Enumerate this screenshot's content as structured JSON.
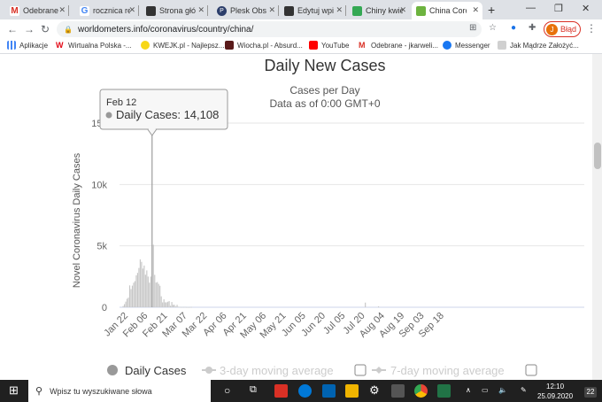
{
  "browser": {
    "tabs": [
      {
        "label": "Odebrane"
      },
      {
        "label": "rocznica re"
      },
      {
        "label": "Strona głó"
      },
      {
        "label": "Plesk Obs"
      },
      {
        "label": "Edytuj wpi"
      },
      {
        "label": "Chiny kwie"
      },
      {
        "label": "China Coro"
      }
    ],
    "new_tab": "+",
    "url": "worldometers.info/coronavirus/country/china/",
    "error_label": "Błąd",
    "avatar_letter": "J",
    "bookmarks": [
      {
        "label": "Aplikacje"
      },
      {
        "label": "Wirtualna Polska -..."
      },
      {
        "label": "KWEJK.pl - Najlepsz..."
      },
      {
        "label": "Wiocha.pl - Absurd..."
      },
      {
        "label": "YouTube"
      },
      {
        "label": "Odebrane - jkarweli..."
      },
      {
        "label": "Messenger"
      },
      {
        "label": "Jak Mądrze Założyć..."
      }
    ]
  },
  "chart_data": {
    "type": "bar",
    "title": "Daily New Cases",
    "subtitle_line1": "Cases per Day",
    "subtitle_line2": "Data as of 0:00 GMT+0",
    "ylabel": "Novel Coronavirus Daily Cases",
    "ylim": [
      0,
      15000
    ],
    "yticks": [
      "0",
      "5k",
      "10k",
      "15k"
    ],
    "xticks": [
      "Jan 22",
      "Feb 06",
      "Feb 21",
      "Mar 07",
      "Mar 22",
      "Apr 06",
      "Apr 21",
      "May 06",
      "May 21",
      "Jun 05",
      "Jun 20",
      "Jul 05",
      "Jul 20",
      "Aug 04",
      "Aug 19",
      "Sep 03",
      "Sep 18"
    ],
    "series": [
      {
        "name": "Daily Cases",
        "start_date": "Jan 22",
        "values": [
          0,
          100,
          250,
          460,
          690,
          780,
          1780,
          1480,
          1760,
          2000,
          2130,
          2600,
          2800,
          3200,
          3900,
          3700,
          3150,
          3400,
          2650,
          3000,
          2500,
          2000,
          2500,
          14108,
          5090,
          2640,
          2010,
          2050,
          1900,
          1750,
          890,
          400,
          650,
          400,
          400,
          450,
          500,
          120,
          430,
          200,
          200,
          60,
          200,
          40,
          30,
          20,
          20,
          20,
          25,
          15,
          10,
          10,
          15,
          20
        ]
      }
    ],
    "tooltip": {
      "date": "Feb 12",
      "series": "Daily Cases",
      "value": "14,108"
    },
    "legend": [
      {
        "label": "Daily Cases"
      },
      {
        "label": "3-day moving average"
      },
      {
        "label": "7-day moving average"
      }
    ],
    "colors": {
      "bar": "#c7c7c7",
      "highlight": "#999999"
    }
  },
  "taskbar": {
    "search_placeholder": "Wpisz tu wyszukiwane słowa",
    "time": "12:10",
    "date": "25.09.2020",
    "notifications": "22"
  }
}
